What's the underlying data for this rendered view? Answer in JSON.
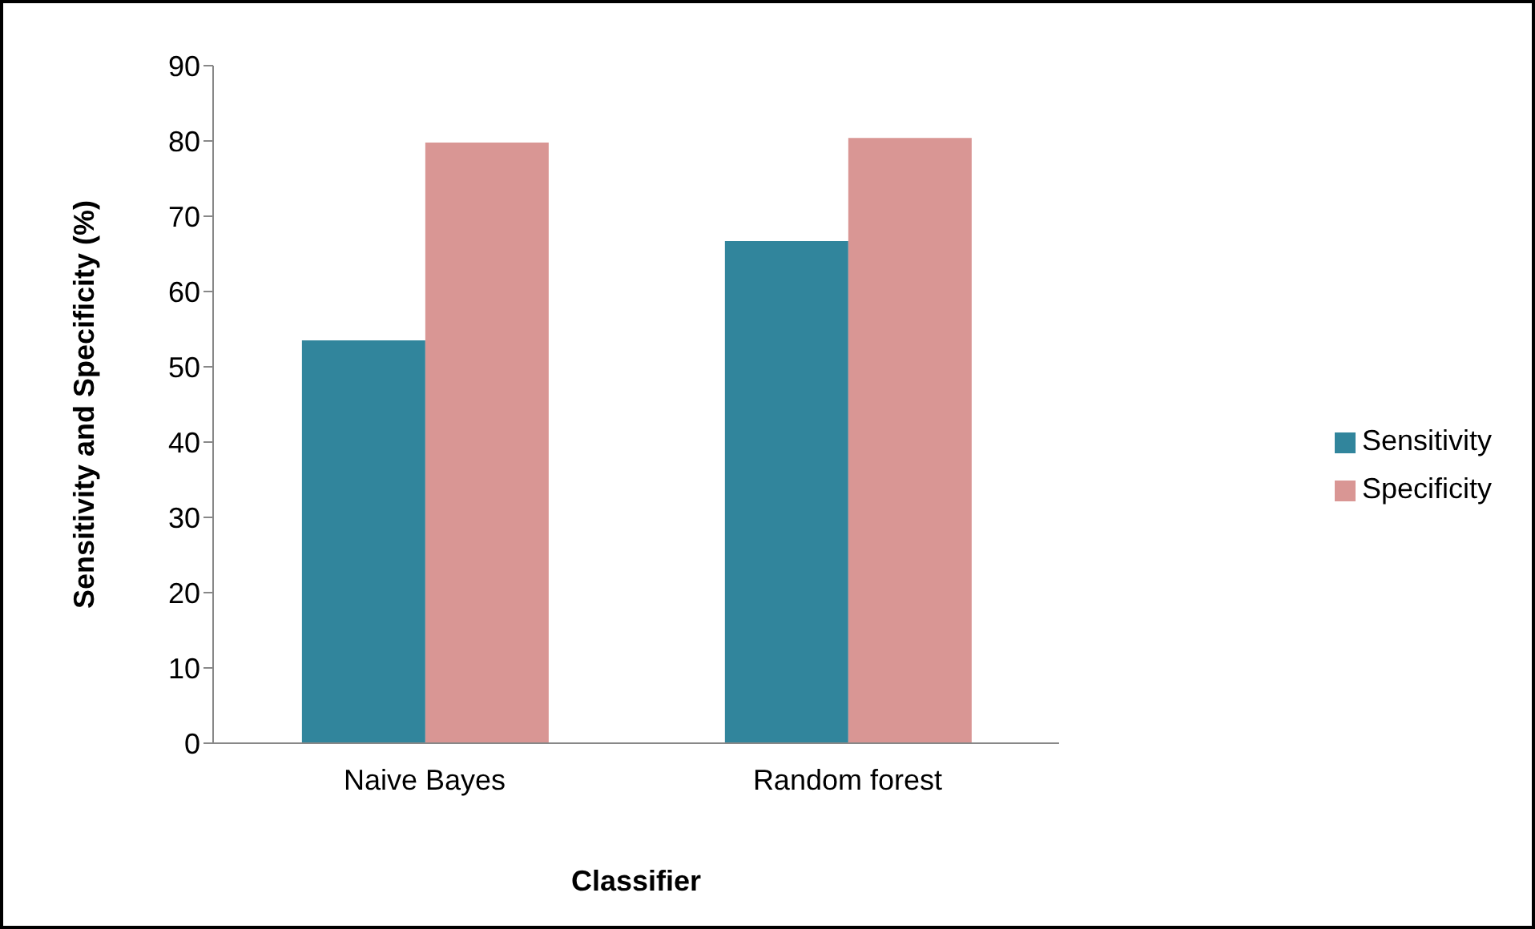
{
  "chart_data": {
    "type": "bar",
    "xlabel": "Classifier",
    "ylabel": "Sensitivity and Specificity (%)",
    "categories": [
      "Naive Bayes",
      "Random forest"
    ],
    "series": [
      {
        "name": "Sensitivity",
        "color": "#31859c",
        "values": [
          53.5,
          66.7
        ]
      },
      {
        "name": "Specificity",
        "color": "#d99694",
        "values": [
          79.8,
          80.4
        ]
      }
    ],
    "ylim": [
      0,
      90
    ],
    "yticks": [
      0,
      10,
      20,
      30,
      40,
      50,
      60,
      70,
      80,
      90
    ],
    "grid": false,
    "legend": "right"
  }
}
